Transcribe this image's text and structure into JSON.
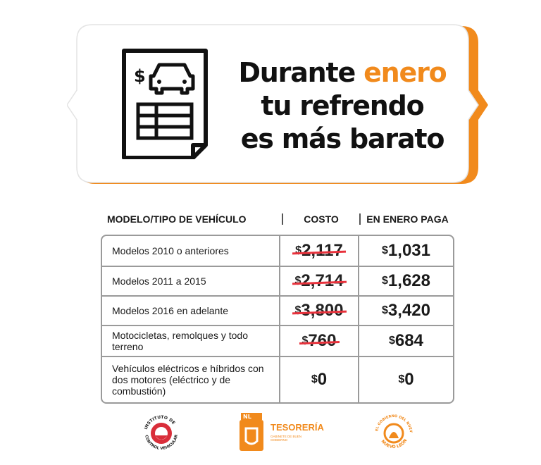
{
  "banner": {
    "headline_1a": "Durante ",
    "headline_1b": "enero",
    "headline_2": "tu refrendo",
    "headline_3": "es más barato",
    "accent_color": "#f18a1c"
  },
  "table": {
    "headers": [
      "MODELO/TIPO DE VEHÍCULO",
      "COSTO",
      "EN ENERO PAGA"
    ],
    "rows": [
      {
        "model": "Modelos 2010 o anteriores",
        "cost": "2,117",
        "pay": "1,031",
        "cost_struck": true
      },
      {
        "model": "Modelos 2011 a 2015",
        "cost": "2,714",
        "pay": "1,628",
        "cost_struck": true
      },
      {
        "model": "Modelos 2016 en adelante",
        "cost": "3,800",
        "pay": "3,420",
        "cost_struck": true
      },
      {
        "model": "Motocicletas, remolques y todo terreno",
        "cost": "760",
        "pay": "684",
        "cost_struck": true
      },
      {
        "model": "Vehículos eléctricos e híbridos con dos motores (eléctrico y de combustión)",
        "cost": "0",
        "pay": "0",
        "cost_struck": false
      }
    ],
    "currency_symbol": "$",
    "strike_color": "#e8323c"
  },
  "logos": {
    "icv_text": "INSTITUTO DE CONTROL VEHICULAR",
    "tesoreria_badge": "NL",
    "tesoreria_title": "TESORERÍA",
    "tesoreria_sub": "GABINETE DE BUEN GOBIERNO",
    "nl_text": "EL GOBIERNO DEL NUEVO NUEVO LEÓN"
  }
}
